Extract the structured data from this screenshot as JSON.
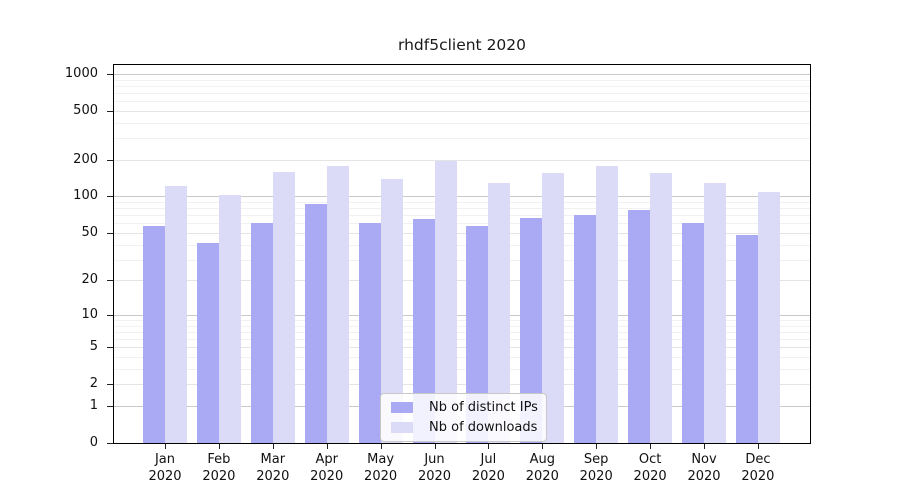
{
  "chart_data": {
    "type": "bar",
    "title": "rhdf5client 2020",
    "x_tick_line1": [
      "Jan",
      "Feb",
      "Mar",
      "Apr",
      "May",
      "Jun",
      "Jul",
      "Aug",
      "Sep",
      "Oct",
      "Nov",
      "Dec"
    ],
    "x_tick_line2": "2020",
    "y_ticks": [
      0,
      1,
      2,
      5,
      10,
      20,
      50,
      100,
      200,
      500,
      1000
    ],
    "y_scale": "symlog",
    "y_top_value": 1200,
    "grid": "on",
    "legend_position": "bottom-center-inside",
    "series": [
      {
        "name": "Nb of distinct IPs",
        "color": "#a9a9f4",
        "values": [
          57,
          41,
          60,
          87,
          61,
          65,
          57,
          66,
          71,
          78,
          60,
          48
        ]
      },
      {
        "name": "Nb of downloads",
        "color": "#dbdbf8",
        "values": [
          121,
          102,
          160,
          176,
          140,
          194,
          130,
          155,
          176,
          155,
          130,
          108
        ]
      }
    ]
  },
  "colors": {
    "axis": "#000000",
    "text": "#111111",
    "grid_major": "#c9c9c9",
    "grid_mid": "#e4e4e4",
    "grid_minor": "#f1f1f1",
    "legend_border": "#c8c8c8"
  }
}
